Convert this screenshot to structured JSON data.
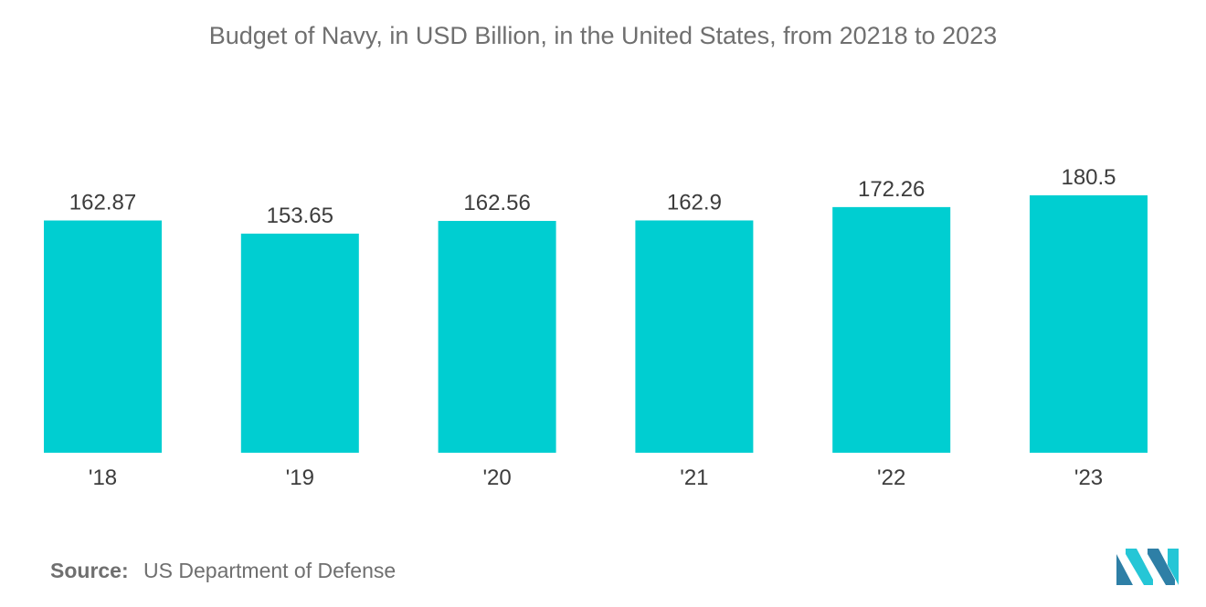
{
  "title": "Budget of Navy, in USD Billion, in the United States,  from 20218 to 2023",
  "source": {
    "label": "Source:",
    "text": "US Department of Defense"
  },
  "colors": {
    "bar": "#00ced1",
    "logo_dark": "#2e7fa6",
    "logo_light": "#25c6d6"
  },
  "chart_data": {
    "type": "bar",
    "title": "Budget of Navy, in USD Billion, in the United States,  from 20218 to 2023",
    "categories": [
      "'18",
      "'19",
      "'20",
      "'21",
      "'22",
      "'23"
    ],
    "values": [
      162.87,
      153.65,
      162.56,
      162.9,
      172.26,
      180.5
    ],
    "value_labels": [
      "162.87",
      "153.65",
      "162.56",
      "162.9",
      "172.26",
      "180.5"
    ],
    "xlabel": "",
    "ylabel": "",
    "ylim": [
      0,
      180.5
    ],
    "grid": false,
    "legend": "none"
  }
}
